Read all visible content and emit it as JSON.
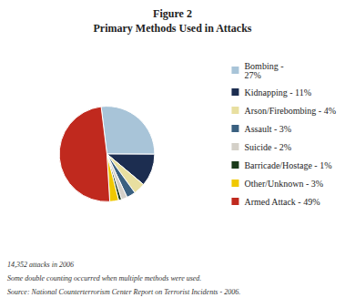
{
  "chart_data": {
    "type": "pie",
    "title": "Figure 2",
    "subtitle": "Primary Methods Used in Attacks",
    "categories": [
      "Bombing -\n27%",
      "Kidnapping - 11%",
      "Arson/Firebombing - 4%",
      "Assault - 3%",
      "Suicide - 2%",
      "Barricade/Hostage - 1%",
      "Other/Unknown - 3%",
      "Armed Attack - 49%"
    ],
    "values": [
      27,
      11,
      4,
      3,
      2,
      1,
      3,
      49
    ],
    "colors": [
      "#a8c4d8",
      "#1c2d50",
      "#e8dfa0",
      "#3a6080",
      "#d4d0c8",
      "#1a3a1a",
      "#f0c800",
      "#c0291e"
    ],
    "legend": "right",
    "annotations": [
      "14,352 attacks in 2006",
      "Some double counting occurred when multiple methods were used.",
      "Source: National Counterterrorism Center Report on Terrorist Incidents - 2006."
    ]
  }
}
